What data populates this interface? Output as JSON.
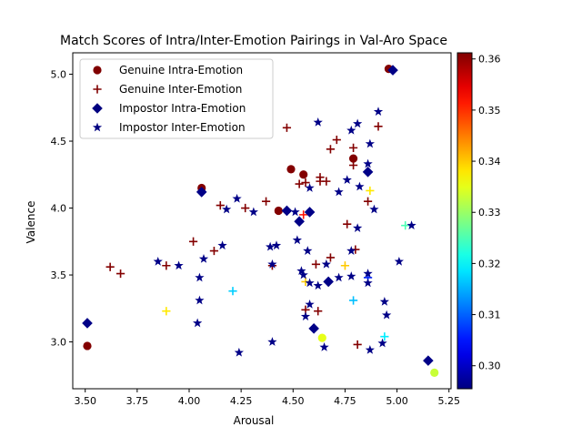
{
  "chart_data": {
    "type": "scatter",
    "title": "Match Scores of Intra/Inter-Emotion Pairings in Val-Aro Space",
    "xlabel": "Arousal",
    "ylabel": "Valence",
    "xlim": [
      3.44,
      5.26
    ],
    "ylim": [
      2.65,
      5.16
    ],
    "xticks": [
      "3.50",
      "3.75",
      "4.00",
      "4.25",
      "4.50",
      "4.75",
      "5.00",
      "5.25"
    ],
    "yticks": [
      "3.0",
      "3.5",
      "4.0",
      "4.5",
      "5.0"
    ],
    "colorbar": {
      "cmap": "jet",
      "min": 0.2955,
      "max": 0.3612,
      "ticks": [
        "0.30",
        "0.31",
        "0.32",
        "0.33",
        "0.34",
        "0.35",
        "0.36"
      ]
    },
    "legend": {
      "position": "top-left",
      "entries": [
        {
          "label": "Genuine Intra-Emotion",
          "marker": "circle"
        },
        {
          "label": "Genuine Inter-Emotion",
          "marker": "plus"
        },
        {
          "label": "Impostor Intra-Emotion",
          "marker": "diamond"
        },
        {
          "label": "Impostor Inter-Emotion",
          "marker": "star"
        }
      ]
    },
    "series": [
      {
        "name": "Genuine Intra-Emotion",
        "marker": "circle",
        "points": [
          [
            4.96,
            5.04,
            0.361
          ],
          [
            4.79,
            4.37,
            0.361
          ],
          [
            4.49,
            4.29,
            0.361
          ],
          [
            4.55,
            4.25,
            0.361
          ],
          [
            4.06,
            4.15,
            0.361
          ],
          [
            4.43,
            3.98,
            0.361
          ],
          [
            3.51,
            2.97,
            0.361
          ],
          [
            4.64,
            3.03,
            0.335
          ],
          [
            5.18,
            2.77,
            0.333
          ]
        ]
      },
      {
        "name": "Genuine Inter-Emotion",
        "marker": "plus",
        "points": [
          [
            4.91,
            4.61,
            0.361
          ],
          [
            4.47,
            4.6,
            0.361
          ],
          [
            4.71,
            4.51,
            0.361
          ],
          [
            4.79,
            4.45,
            0.361
          ],
          [
            4.68,
            4.44,
            0.361
          ],
          [
            4.79,
            4.32,
            0.361
          ],
          [
            4.63,
            4.23,
            0.361
          ],
          [
            4.63,
            4.2,
            0.361
          ],
          [
            4.66,
            4.2,
            0.361
          ],
          [
            4.56,
            4.19,
            0.361
          ],
          [
            4.53,
            4.18,
            0.361
          ],
          [
            4.86,
            4.05,
            0.361
          ],
          [
            4.37,
            4.05,
            0.361
          ],
          [
            4.15,
            4.02,
            0.361
          ],
          [
            4.27,
            4.0,
            0.361
          ],
          [
            4.02,
            3.75,
            0.361
          ],
          [
            4.76,
            3.88,
            0.361
          ],
          [
            4.8,
            3.69,
            0.361
          ],
          [
            4.12,
            3.68,
            0.361
          ],
          [
            4.68,
            3.63,
            0.361
          ],
          [
            3.62,
            3.56,
            0.361
          ],
          [
            3.67,
            3.51,
            0.361
          ],
          [
            3.89,
            3.57,
            0.361
          ],
          [
            4.4,
            3.57,
            0.361
          ],
          [
            4.61,
            3.58,
            0.361
          ],
          [
            4.56,
            3.24,
            0.361
          ],
          [
            4.62,
            3.23,
            0.361
          ],
          [
            4.81,
            2.98,
            0.361
          ],
          [
            4.55,
            3.95,
            0.352
          ],
          [
            4.87,
            4.13,
            0.338
          ],
          [
            4.75,
            3.57,
            0.34
          ],
          [
            4.56,
            3.45,
            0.34
          ],
          [
            3.89,
            3.23,
            0.338
          ],
          [
            5.04,
            3.87,
            0.325
          ],
          [
            4.21,
            3.38,
            0.317
          ],
          [
            4.79,
            3.31,
            0.316
          ],
          [
            4.94,
            3.04,
            0.319
          ],
          [
            4.86,
            3.48,
            0.306
          ]
        ]
      },
      {
        "name": "Impostor Intra-Emotion",
        "marker": "diamond",
        "points": [
          [
            4.98,
            5.03,
            0.296
          ],
          [
            4.86,
            4.27,
            0.296
          ],
          [
            4.06,
            4.12,
            0.296
          ],
          [
            4.47,
            3.98,
            0.296
          ],
          [
            4.58,
            3.97,
            0.296
          ],
          [
            4.53,
            3.9,
            0.296
          ],
          [
            4.67,
            3.45,
            0.296
          ],
          [
            4.6,
            3.1,
            0.296
          ],
          [
            3.51,
            3.14,
            0.296
          ],
          [
            5.15,
            2.86,
            0.296
          ]
        ]
      },
      {
        "name": "Impostor Inter-Emotion",
        "marker": "star",
        "points": [
          [
            4.91,
            4.72,
            0.296
          ],
          [
            4.62,
            4.64,
            0.296
          ],
          [
            4.81,
            4.63,
            0.296
          ],
          [
            4.78,
            4.58,
            0.296
          ],
          [
            4.87,
            4.48,
            0.296
          ],
          [
            4.86,
            4.33,
            0.296
          ],
          [
            4.76,
            4.21,
            0.296
          ],
          [
            4.82,
            4.16,
            0.296
          ],
          [
            4.58,
            4.15,
            0.296
          ],
          [
            4.72,
            4.12,
            0.296
          ],
          [
            4.23,
            4.07,
            0.296
          ],
          [
            4.18,
            3.99,
            0.296
          ],
          [
            4.31,
            3.97,
            0.296
          ],
          [
            4.51,
            3.97,
            0.296
          ],
          [
            4.89,
            3.99,
            0.296
          ],
          [
            5.07,
            3.87,
            0.296
          ],
          [
            4.81,
            3.85,
            0.296
          ],
          [
            4.52,
            3.76,
            0.296
          ],
          [
            4.16,
            3.72,
            0.296
          ],
          [
            4.39,
            3.71,
            0.296
          ],
          [
            4.42,
            3.72,
            0.296
          ],
          [
            4.57,
            3.68,
            0.296
          ],
          [
            4.78,
            3.68,
            0.296
          ],
          [
            4.07,
            3.62,
            0.296
          ],
          [
            3.85,
            3.6,
            0.296
          ],
          [
            3.95,
            3.57,
            0.296
          ],
          [
            4.4,
            3.58,
            0.296
          ],
          [
            5.01,
            3.6,
            0.296
          ],
          [
            4.54,
            3.53,
            0.296
          ],
          [
            4.55,
            3.5,
            0.296
          ],
          [
            4.66,
            3.58,
            0.296
          ],
          [
            4.72,
            3.48,
            0.296
          ],
          [
            4.78,
            3.49,
            0.296
          ],
          [
            4.86,
            3.51,
            0.296
          ],
          [
            4.05,
            3.48,
            0.296
          ],
          [
            4.58,
            3.44,
            0.296
          ],
          [
            4.62,
            3.42,
            0.296
          ],
          [
            4.86,
            3.44,
            0.296
          ],
          [
            4.05,
            3.31,
            0.296
          ],
          [
            4.58,
            3.28,
            0.296
          ],
          [
            4.94,
            3.3,
            0.296
          ],
          [
            4.56,
            3.19,
            0.296
          ],
          [
            4.95,
            3.2,
            0.296
          ],
          [
            4.04,
            3.14,
            0.296
          ],
          [
            4.4,
            3.0,
            0.296
          ],
          [
            4.65,
            2.96,
            0.296
          ],
          [
            4.93,
            2.99,
            0.296
          ],
          [
            4.87,
            2.94,
            0.296
          ],
          [
            4.24,
            2.92,
            0.296
          ]
        ]
      }
    ]
  }
}
